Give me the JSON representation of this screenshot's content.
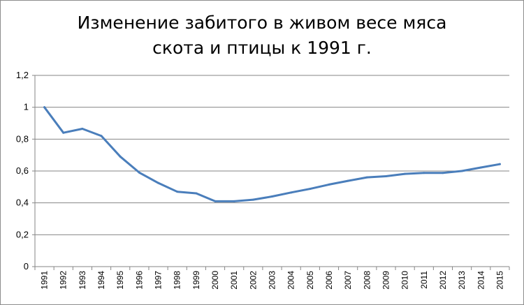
{
  "chart_data": {
    "type": "line",
    "title_lines": [
      "Изменение забитого в живом весе мяса",
      "скота и птицы к 1991 г."
    ],
    "xlabel": "",
    "ylabel": "",
    "ylim": [
      0,
      1.2
    ],
    "y_ticks": [
      "0",
      "0,2",
      "0,4",
      "0,6",
      "0,8",
      "1",
      "1,2"
    ],
    "grid": true,
    "legend": "none",
    "line_color": "#4a7ebb",
    "categories": [
      "1991",
      "1992",
      "1993",
      "1994",
      "1995",
      "1996",
      "1997",
      "1998",
      "1999",
      "2000",
      "2001",
      "2002",
      "2003",
      "2004",
      "2005",
      "2006",
      "2007",
      "2008",
      "2009",
      "2010",
      "2011",
      "2012",
      "2013",
      "2014",
      "2015"
    ],
    "series": [
      {
        "values": [
          1.0,
          0.84,
          0.865,
          0.82,
          0.69,
          0.59,
          0.525,
          0.47,
          0.46,
          0.41,
          0.41,
          0.42,
          0.44,
          0.465,
          0.488,
          0.515,
          0.538,
          0.56,
          0.567,
          0.582,
          0.588,
          0.588,
          0.6,
          0.622,
          0.643
        ]
      }
    ]
  }
}
